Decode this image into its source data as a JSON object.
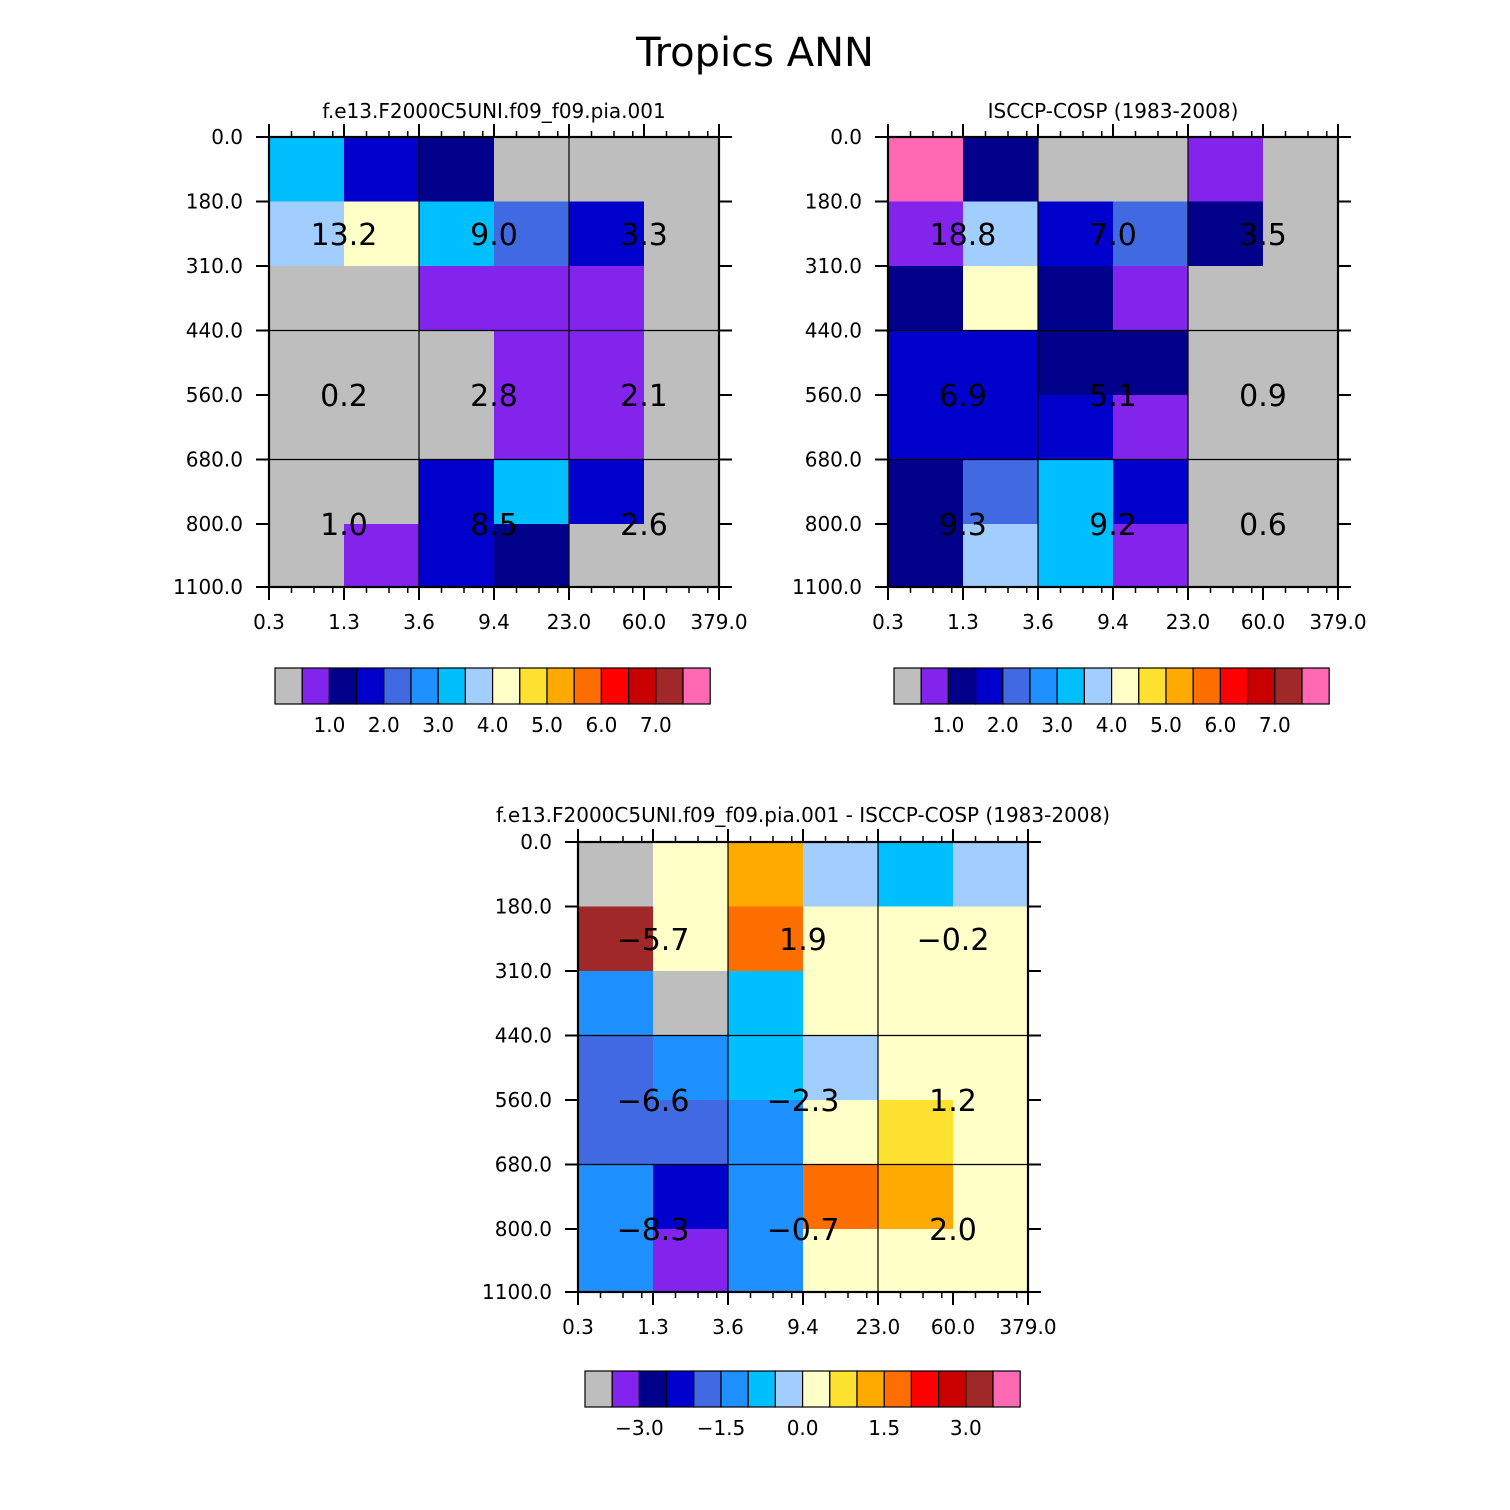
{
  "title": "Tropics ANN",
  "palette": {
    "colors": [
      "#bebebe",
      "#8224eb",
      "#00008b",
      "#0000cd",
      "#4169e1",
      "#1e90ff",
      "#00bfff",
      "#a2cdff",
      "#ffffc8",
      "#ffe131",
      "#ffaa00",
      "#ff6e00",
      "#ff0000",
      "#c80000",
      "#a02828",
      "#ff69b4"
    ],
    "abs_labels": [
      "1.0",
      "2.0",
      "3.0",
      "4.0",
      "5.0",
      "6.0",
      "7.0"
    ],
    "diff_labels": [
      "-3.0",
      "-1.5",
      "0.0",
      "1.5",
      "3.0"
    ]
  },
  "chart_data": [
    {
      "type": "heatmap",
      "name": "panel-model",
      "title": "f.e13.F2000C5UNI.f09_f09.pia.001",
      "x_tick_labels": [
        "0.3",
        "1.3",
        "3.6",
        "9.4",
        "23.0",
        "60.0",
        "379.0"
      ],
      "y_tick_labels": [
        "0.0",
        "180.0",
        "310.0",
        "440.0",
        "560.0",
        "680.0",
        "800.0",
        "1100.0"
      ],
      "cells": [
        [
          6,
          3,
          2,
          0,
          0,
          0
        ],
        [
          7,
          8,
          6,
          4,
          3,
          0
        ],
        [
          0,
          0,
          1,
          1,
          1,
          0
        ],
        [
          0,
          0,
          0,
          1,
          1,
          0
        ],
        [
          0,
          0,
          0,
          1,
          1,
          0
        ],
        [
          0,
          0,
          3,
          6,
          3,
          0
        ],
        [
          0,
          1,
          3,
          2,
          0,
          0
        ]
      ],
      "group_values": [
        [
          "13.2",
          "9.0",
          "3.3"
        ],
        [
          "0.2",
          "2.8",
          "2.1"
        ],
        [
          "1.0",
          "8.5",
          "2.6"
        ]
      ],
      "colorbar": "abs"
    },
    {
      "type": "heatmap",
      "name": "panel-obs",
      "title": "ISCCP-COSP (1983-2008)",
      "x_tick_labels": [
        "0.3",
        "1.3",
        "3.6",
        "9.4",
        "23.0",
        "60.0",
        "379.0"
      ],
      "y_tick_labels": [
        "0.0",
        "180.0",
        "310.0",
        "440.0",
        "560.0",
        "680.0",
        "800.0",
        "1100.0"
      ],
      "cells": [
        [
          15,
          2,
          0,
          0,
          1,
          0
        ],
        [
          1,
          7,
          3,
          4,
          2,
          0
        ],
        [
          2,
          8,
          2,
          1,
          0,
          0
        ],
        [
          3,
          3,
          2,
          2,
          0,
          0
        ],
        [
          3,
          3,
          3,
          1,
          0,
          0
        ],
        [
          2,
          4,
          6,
          3,
          0,
          0
        ],
        [
          2,
          7,
          6,
          1,
          0,
          0
        ]
      ],
      "group_values": [
        [
          "18.8",
          "7.0",
          "3.5"
        ],
        [
          "6.9",
          "5.1",
          "0.9"
        ],
        [
          "9.3",
          "9.2",
          "0.6"
        ]
      ],
      "colorbar": "abs"
    },
    {
      "type": "heatmap",
      "name": "panel-diff",
      "title": "f.e13.F2000C5UNI.f09_f09.pia.001 - ISCCP-COSP (1983-2008)",
      "x_tick_labels": [
        "0.3",
        "1.3",
        "3.6",
        "9.4",
        "23.0",
        "60.0",
        "379.0"
      ],
      "y_tick_labels": [
        "0.0",
        "180.0",
        "310.0",
        "440.0",
        "560.0",
        "680.0",
        "800.0",
        "1100.0"
      ],
      "cells": [
        [
          0,
          8,
          10,
          7,
          6,
          7
        ],
        [
          14,
          8,
          11,
          8,
          8,
          8
        ],
        [
          5,
          0,
          6,
          8,
          8,
          8
        ],
        [
          4,
          5,
          6,
          7,
          8,
          8
        ],
        [
          4,
          4,
          5,
          8,
          9,
          8
        ],
        [
          5,
          3,
          5,
          11,
          10,
          8
        ],
        [
          5,
          1,
          5,
          8,
          8,
          8
        ]
      ],
      "group_values": [
        [
          "-5.7",
          "1.9",
          "-0.2"
        ],
        [
          "-6.6",
          "-2.3",
          "1.2"
        ],
        [
          "-8.3",
          "-0.7",
          "2.0"
        ]
      ],
      "colorbar": "diff"
    }
  ]
}
